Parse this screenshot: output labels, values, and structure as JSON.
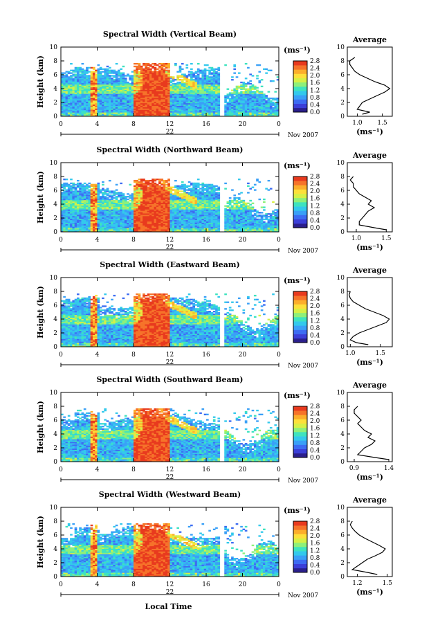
{
  "figure": {
    "xlabel": "Local Time",
    "date_label": "Nov 2007",
    "day_label": "22",
    "units_label": "(ms⁻¹)"
  },
  "chart_data": [
    {
      "type": "heatmap",
      "title": "Spectral Width (Vertical Beam)",
      "ylabel": "Height (km)",
      "xlabel": "Local Time",
      "xticks": [
        "0",
        "4",
        "8",
        "12",
        "16",
        "20",
        "0"
      ],
      "xlim": [
        0,
        24
      ],
      "yticks": [
        "0",
        "2",
        "4",
        "6",
        "8",
        "10"
      ],
      "ylim": [
        0,
        10
      ],
      "colorbar": {
        "label": "(ms⁻¹)",
        "ticks": [
          "0.0",
          "0.4",
          "0.8",
          "1.2",
          "1.6",
          "2.0",
          "2.4",
          "2.8"
        ],
        "range": [
          0,
          2.8
        ]
      },
      "average_profile": {
        "title": "Average",
        "xlabel": "(ms⁻¹)",
        "xticks": [
          "1.0",
          "1.5"
        ],
        "xlim": [
          0.8,
          1.7
        ],
        "yticks": [
          "0",
          "2",
          "4",
          "6",
          "8",
          "10"
        ],
        "ylim": [
          0,
          10
        ],
        "height": [
          0.3,
          0.6,
          1.0,
          1.5,
          2.0,
          2.5,
          3.0,
          3.5,
          4.0,
          4.5,
          5.0,
          5.5,
          6.0,
          6.5,
          7.0,
          7.5,
          8.0,
          8.5
        ],
        "width": [
          1.1,
          1.25,
          1.0,
          1.05,
          1.1,
          1.25,
          1.4,
          1.55,
          1.65,
          1.55,
          1.35,
          1.2,
          1.05,
          0.95,
          0.9,
          0.85,
          0.85,
          0.95
        ]
      }
    },
    {
      "type": "heatmap",
      "title": "Spectral Width (Northward Beam)",
      "ylabel": "Height (km)",
      "xlabel": "Local Time",
      "xticks": [
        "0",
        "4",
        "8",
        "12",
        "16",
        "20",
        "0"
      ],
      "xlim": [
        0,
        24
      ],
      "yticks": [
        "0",
        "2",
        "4",
        "6",
        "8",
        "10"
      ],
      "ylim": [
        0,
        10
      ],
      "colorbar": {
        "label": "(ms⁻¹)",
        "ticks": [
          "0.0",
          "0.4",
          "0.8",
          "1.2",
          "1.6",
          "2.0",
          "2.4",
          "2.8"
        ],
        "range": [
          0,
          2.8
        ]
      },
      "average_profile": {
        "title": "Average",
        "xlabel": "(ms⁻¹)",
        "xticks": [
          "1.0",
          "1.5"
        ],
        "xlim": [
          0.85,
          1.6
        ],
        "yticks": [
          "0",
          "2",
          "4",
          "6",
          "8",
          "10"
        ],
        "ylim": [
          0,
          10
        ],
        "height": [
          0.3,
          0.6,
          1.0,
          1.5,
          2.0,
          2.5,
          3.0,
          3.5,
          4.0,
          4.5,
          5.0,
          5.5,
          6.0,
          6.5,
          7.0,
          7.5,
          8.0
        ],
        "width": [
          1.5,
          1.3,
          1.05,
          1.05,
          1.1,
          1.15,
          1.2,
          1.3,
          1.2,
          1.25,
          1.15,
          1.05,
          1.0,
          0.95,
          0.95,
          0.9,
          0.95
        ]
      }
    },
    {
      "type": "heatmap",
      "title": "Spectral Width (Eastward Beam)",
      "ylabel": "Height (km)",
      "xlabel": "Local Time",
      "xticks": [
        "0",
        "4",
        "8",
        "12",
        "16",
        "20",
        "0"
      ],
      "xlim": [
        0,
        24
      ],
      "yticks": [
        "0",
        "2",
        "4",
        "6",
        "8",
        "10"
      ],
      "ylim": [
        0,
        10
      ],
      "colorbar": {
        "label": "(ms⁻¹)",
        "ticks": [
          "0.0",
          "0.4",
          "0.8",
          "1.2",
          "1.6",
          "2.0",
          "2.4",
          "2.8"
        ],
        "range": [
          0,
          2.8
        ]
      },
      "average_profile": {
        "title": "Average",
        "xlabel": "(ms⁻¹)",
        "xticks": [
          "1.0",
          "1.5"
        ],
        "xlim": [
          0.95,
          1.7
        ],
        "yticks": [
          "0",
          "2",
          "4",
          "6",
          "8",
          "10"
        ],
        "ylim": [
          0,
          10
        ],
        "height": [
          0.3,
          0.6,
          1.0,
          1.5,
          2.0,
          2.5,
          3.0,
          3.5,
          4.0,
          4.5,
          5.0,
          5.5,
          6.0,
          6.5,
          7.0,
          7.5,
          8.0
        ],
        "width": [
          1.3,
          1.1,
          1.0,
          1.05,
          1.15,
          1.3,
          1.45,
          1.6,
          1.65,
          1.55,
          1.4,
          1.25,
          1.15,
          1.05,
          1.0,
          0.98,
          1.0
        ]
      }
    },
    {
      "type": "heatmap",
      "title": "Spectral Width (Southward Beam)",
      "ylabel": "Height (km)",
      "xlabel": "Local Time",
      "xticks": [
        "0",
        "4",
        "8",
        "12",
        "16",
        "20",
        "0"
      ],
      "xlim": [
        0,
        24
      ],
      "yticks": [
        "0",
        "2",
        "4",
        "6",
        "8",
        "10"
      ],
      "ylim": [
        0,
        10
      ],
      "colorbar": {
        "label": "(ms⁻¹)",
        "ticks": [
          "0.0",
          "0.4",
          "0.8",
          "1.2",
          "1.6",
          "2.0",
          "2.4",
          "2.8"
        ],
        "range": [
          0,
          2.8
        ]
      },
      "average_profile": {
        "title": "Average",
        "xlabel": "(ms⁻¹)",
        "xticks": [
          "0.9",
          "1.4"
        ],
        "xlim": [
          0.8,
          1.45
        ],
        "yticks": [
          "0",
          "2",
          "4",
          "6",
          "8",
          "10"
        ],
        "ylim": [
          0,
          10
        ],
        "height": [
          0.3,
          0.6,
          1.0,
          1.5,
          2.0,
          2.5,
          3.0,
          3.5,
          4.0,
          4.5,
          5.0,
          5.5,
          6.0,
          6.5,
          7.0,
          7.5,
          8.0
        ],
        "width": [
          1.4,
          1.2,
          0.95,
          1.0,
          1.05,
          1.15,
          1.2,
          1.1,
          1.15,
          1.05,
          1.0,
          0.95,
          1.0,
          0.95,
          0.9,
          0.9,
          0.95
        ]
      }
    },
    {
      "type": "heatmap",
      "title": "Spectral Width (Westward Beam)",
      "ylabel": "Height (km)",
      "xlabel": "Local Time",
      "xticks": [
        "0",
        "4",
        "8",
        "12",
        "16",
        "20",
        "0"
      ],
      "xlim": [
        0,
        24
      ],
      "yticks": [
        "0",
        "2",
        "4",
        "6",
        "8",
        "10"
      ],
      "ylim": [
        0,
        10
      ],
      "colorbar": {
        "label": "(ms⁻¹)",
        "ticks": [
          "0.0",
          "0.4",
          "0.8",
          "1.2",
          "1.6",
          "2.0",
          "2.4",
          "2.8"
        ],
        "range": [
          0,
          2.8
        ]
      },
      "average_profile": {
        "title": "Average",
        "xlabel": "(ms⁻¹)",
        "xticks": [
          "1.2",
          "1.5"
        ],
        "xlim": [
          1.1,
          1.55
        ],
        "yticks": [
          "0",
          "2",
          "4",
          "6",
          "8",
          "10"
        ],
        "ylim": [
          0,
          10
        ],
        "height": [
          0.3,
          0.6,
          1.0,
          1.5,
          2.0,
          2.5,
          3.0,
          3.5,
          4.0,
          4.5,
          5.0,
          5.5,
          6.0,
          6.5,
          7.0,
          7.5,
          8.0
        ],
        "width": [
          1.4,
          1.3,
          1.15,
          1.2,
          1.25,
          1.3,
          1.38,
          1.45,
          1.48,
          1.42,
          1.35,
          1.28,
          1.22,
          1.18,
          1.15,
          1.13,
          1.15
        ]
      }
    }
  ]
}
